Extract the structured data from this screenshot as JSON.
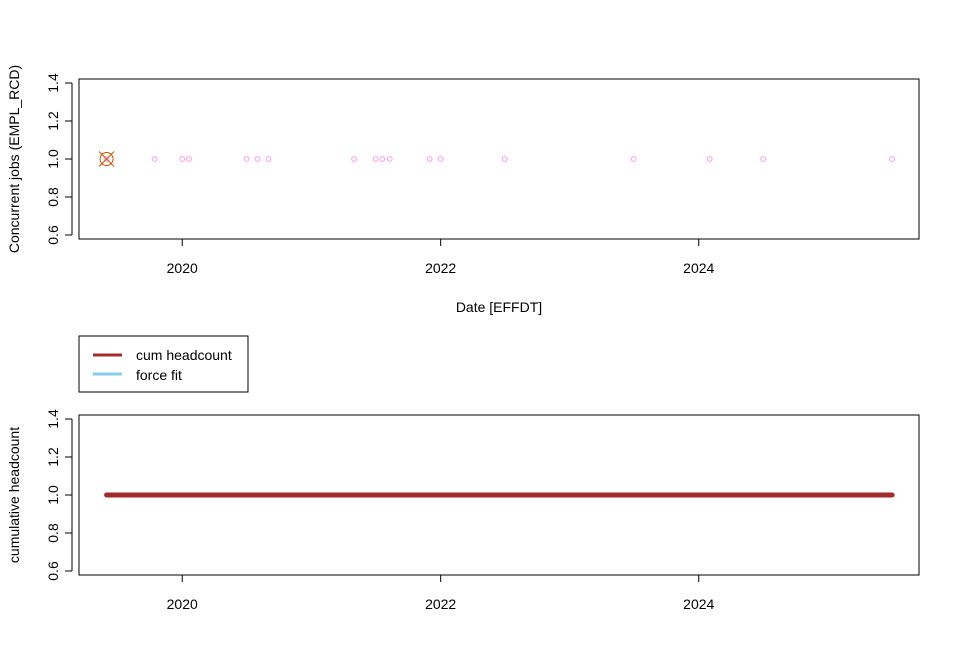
{
  "chart_data": [
    {
      "type": "scatter",
      "title": "",
      "xlabel": "Date [EFFDT]",
      "ylabel": "Concurrent jobs (EMPL_RCD)",
      "ylim": [
        0.6,
        1.4
      ],
      "yticks": [
        "0.6",
        "0.8",
        "1.0",
        "1.2",
        "1.4"
      ],
      "xticks": [
        {
          "date": "2020-01-01",
          "label": "2020"
        },
        {
          "date": "2022-01-01",
          "label": "2022"
        },
        {
          "date": "2024-01-01",
          "label": "2024"
        }
      ],
      "xlim": [
        "2019-03-15",
        "2025-09-15"
      ],
      "grid": false,
      "point_color": "#ff99ee",
      "highlight_color": "#cc5500",
      "highlight": {
        "date": "2019-06-01",
        "value": 1.0
      },
      "points": [
        {
          "date": "2019-06-01",
          "value": 1.0
        },
        {
          "date": "2019-10-15",
          "value": 1.0
        },
        {
          "date": "2020-01-01",
          "value": 1.0
        },
        {
          "date": "2020-01-20",
          "value": 1.0
        },
        {
          "date": "2020-07-01",
          "value": 1.0
        },
        {
          "date": "2020-08-01",
          "value": 1.0
        },
        {
          "date": "2020-09-01",
          "value": 1.0
        },
        {
          "date": "2021-05-01",
          "value": 1.0
        },
        {
          "date": "2021-07-01",
          "value": 1.0
        },
        {
          "date": "2021-07-20",
          "value": 1.0
        },
        {
          "date": "2021-08-10",
          "value": 1.0
        },
        {
          "date": "2021-12-01",
          "value": 1.0
        },
        {
          "date": "2022-01-01",
          "value": 1.0
        },
        {
          "date": "2022-07-01",
          "value": 1.0
        },
        {
          "date": "2023-07-01",
          "value": 1.0
        },
        {
          "date": "2024-02-01",
          "value": 1.0
        },
        {
          "date": "2024-07-01",
          "value": 1.0
        },
        {
          "date": "2025-07-01",
          "value": 1.0
        }
      ]
    },
    {
      "type": "line",
      "title": "",
      "xlabel": "",
      "ylabel": "cumulative headcount",
      "ylim": [
        0.6,
        1.4
      ],
      "yticks": [
        "0.6",
        "0.8",
        "1.0",
        "1.2",
        "1.4"
      ],
      "xticks": [
        {
          "date": "2020-01-01",
          "label": "2020"
        },
        {
          "date": "2022-01-01",
          "label": "2022"
        },
        {
          "date": "2024-01-01",
          "label": "2024"
        }
      ],
      "xlim": [
        "2019-03-15",
        "2025-09-15"
      ],
      "grid": false,
      "legend_placement": "above-left",
      "series": [
        {
          "name": "cum headcount",
          "color": "#a52a2a",
          "x": [
            "2019-06-01",
            "2025-07-01"
          ],
          "values": [
            1.0,
            1.0
          ]
        },
        {
          "name": "force fit",
          "color": "#87ceeb",
          "x": [],
          "values": []
        }
      ]
    }
  ]
}
